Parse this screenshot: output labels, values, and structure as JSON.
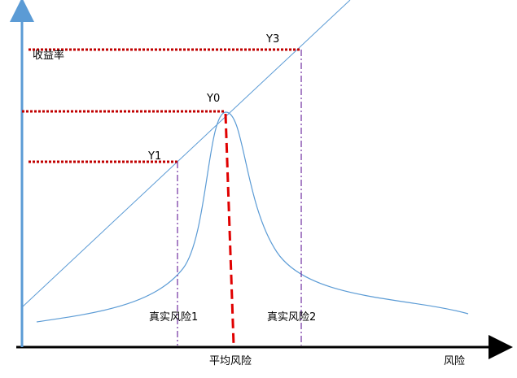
{
  "axes": {
    "y_label": "收益率",
    "x_label": "风险"
  },
  "points": {
    "y0": "Y0",
    "y1": "Y1",
    "y3": "Y3"
  },
  "risks": {
    "average": "平均风险",
    "real1": "真实风险1",
    "real2": "真实风险2"
  }
}
